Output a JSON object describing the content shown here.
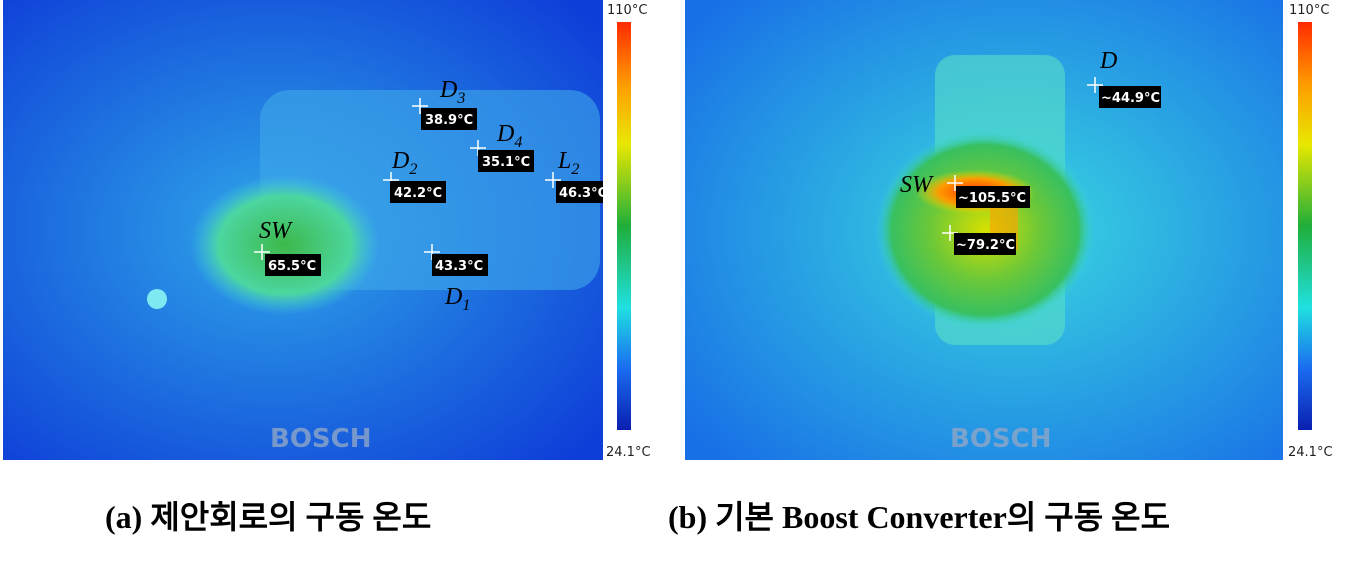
{
  "panels": [
    {
      "scale_max": "110°C",
      "scale_min": "24.1°C",
      "logo": "BOSCH",
      "caption": "(a) 제안회로의 구동 온도",
      "points": [
        {
          "name": "D",
          "sub": "3",
          "reading": "38.9°C"
        },
        {
          "name": "D",
          "sub": "4",
          "reading": "35.1°C"
        },
        {
          "name": "D",
          "sub": "2",
          "reading": "42.2°C"
        },
        {
          "name": "L",
          "sub": "2",
          "reading": "46.3°C"
        },
        {
          "name": "SW",
          "reading": "65.5°C"
        },
        {
          "name": "D",
          "sub": "1",
          "reading": "43.3°C"
        }
      ]
    },
    {
      "scale_max": "110°C",
      "scale_min": "24.1°C",
      "logo": "BOSCH",
      "caption": "(b) 기본 Boost Converter의 구동 온도",
      "points": [
        {
          "name": "D",
          "reading": "~44.9°C"
        },
        {
          "name": "SW",
          "reading": "~105.5°C"
        },
        {
          "reading": "~79.2°C"
        }
      ]
    }
  ]
}
